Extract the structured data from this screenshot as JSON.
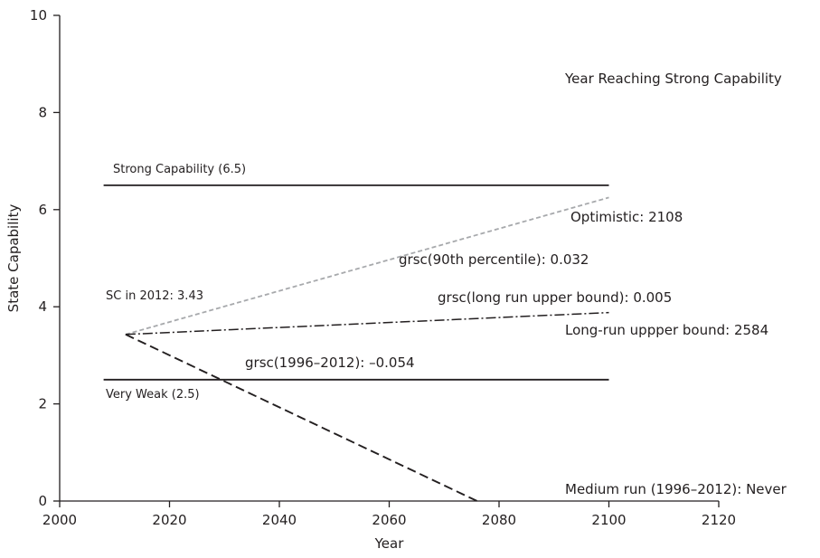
{
  "chart_data": {
    "type": "line",
    "title": "",
    "xlabel": "Year",
    "ylabel": "State Capability",
    "xlim": [
      2000,
      2120
    ],
    "ylim": [
      0,
      10
    ],
    "xticks": [
      2000,
      2020,
      2040,
      2060,
      2080,
      2100,
      2120
    ],
    "yticks": [
      0,
      2,
      4,
      6,
      8,
      10
    ],
    "grid": false,
    "legend": "none",
    "series": [
      {
        "key": "strong",
        "x": [
          2008,
          2100
        ],
        "y": [
          6.5,
          6.5
        ],
        "color": "#231f20",
        "dash": "solid"
      },
      {
        "key": "very_weak",
        "x": [
          2008,
          2100
        ],
        "y": [
          2.5,
          2.5
        ],
        "color": "#231f20",
        "dash": "solid"
      },
      {
        "key": "optimistic",
        "x": [
          2012,
          2100
        ],
        "y": [
          3.43,
          6.25
        ],
        "color": "#a7a9ac",
        "dash": "dashed"
      },
      {
        "key": "long_run",
        "x": [
          2012,
          2100
        ],
        "y": [
          3.43,
          3.88
        ],
        "color": "#231f20",
        "dash": "dashdot"
      },
      {
        "key": "medium_run",
        "x": [
          2012,
          2076
        ],
        "y": [
          3.43,
          0
        ],
        "color": "#231f20",
        "dash": "dashed-long"
      }
    ],
    "annotations": [
      {
        "key": "header",
        "text": "Year Reaching Strong Capability",
        "size": "lg"
      },
      {
        "key": "strong_label",
        "text": "Strong Capability (6.5)",
        "size": "sm"
      },
      {
        "key": "optimistic_label",
        "text": "Optimistic: 2108",
        "size": "lg"
      },
      {
        "key": "grsc_90",
        "text": "grsc(90th percentile): 0.032",
        "size": "lg"
      },
      {
        "key": "sc2012",
        "text": "SC in 2012: 3.43",
        "size": "sm"
      },
      {
        "key": "grsc_long",
        "text": "grsc(long run upper bound): 0.005",
        "size": "lg"
      },
      {
        "key": "longrun_label",
        "text": "Long-run uppper bound: 2584",
        "size": "lg"
      },
      {
        "key": "grsc_1996",
        "text": "grsc(1996–2012): –0.054",
        "size": "lg"
      },
      {
        "key": "very_weak_label",
        "text": "Very Weak (2.5)",
        "size": "sm"
      },
      {
        "key": "medium_label",
        "text": "Medium run (1996–2012): Never",
        "size": "lg"
      }
    ]
  }
}
